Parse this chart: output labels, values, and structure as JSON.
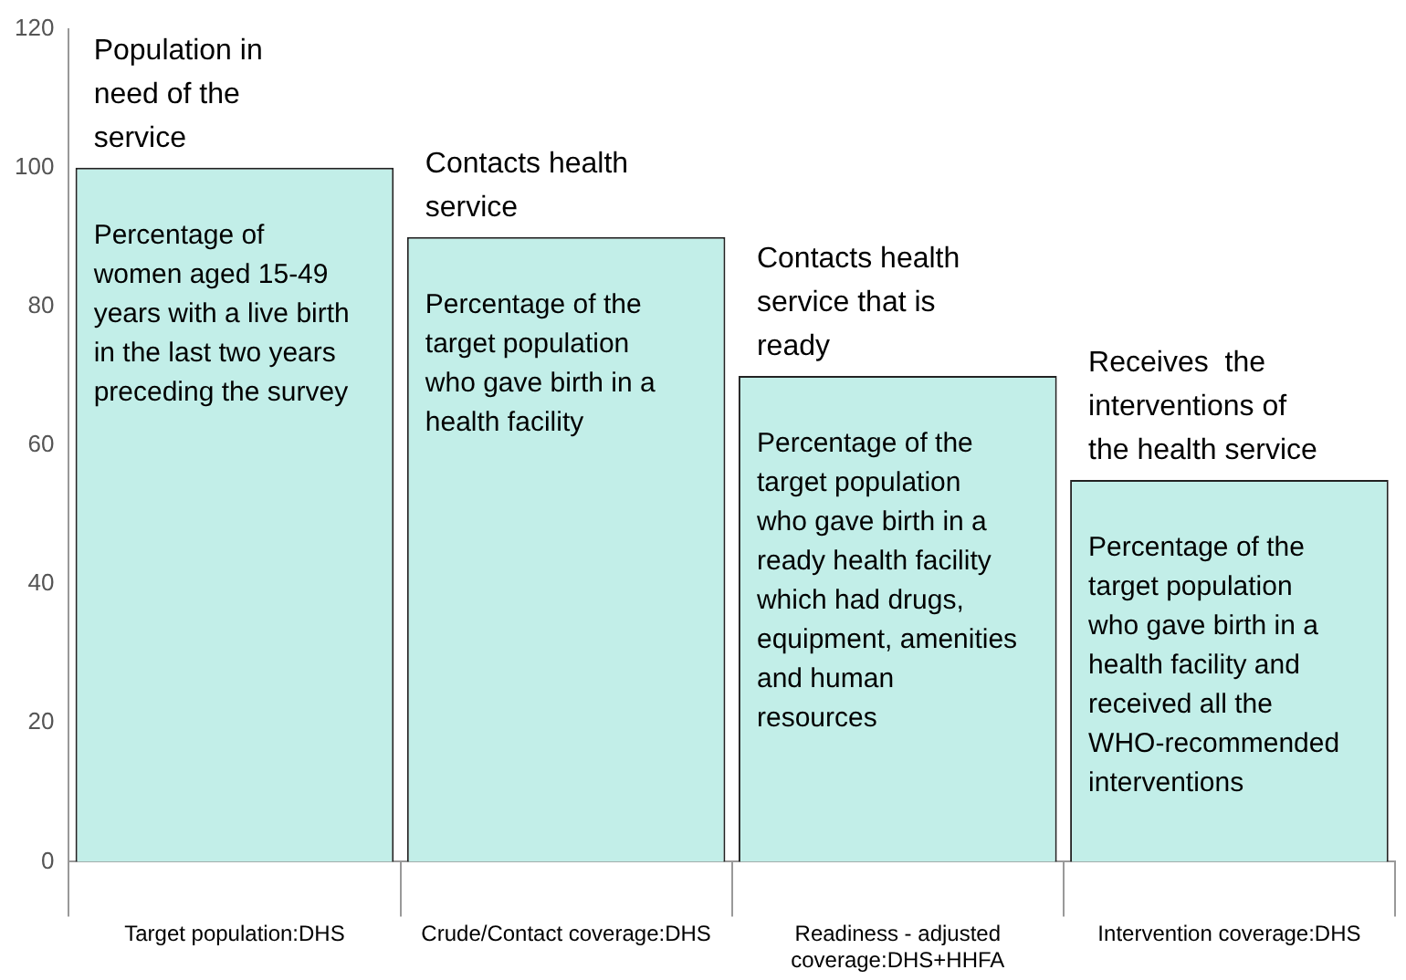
{
  "chart_data": {
    "type": "bar",
    "categories": [
      "Target population:DHS",
      "Crude/Contact coverage:DHS",
      "Readiness - adjusted coverage:DHS+HHFA",
      "Intervention coverage:DHS"
    ],
    "values": [
      100,
      90,
      70,
      55
    ],
    "color": "#c2eee8",
    "ylim": [
      0,
      120
    ],
    "yticks": [
      0,
      20,
      40,
      60,
      80,
      100,
      120
    ],
    "grid": false,
    "legend": false,
    "annotations": [
      {
        "text": "Population in need of the service",
        "x": "Target population:DHS",
        "y": 100
      },
      "Percentage of women aged 15-49 years with a live birth in the last two years preceding the survey",
      {
        "text": "Contacts health service",
        "x": "Crude/Contact coverage:DHS",
        "y": 90
      },
      "Percentage of the target population who gave birth in a health facility",
      {
        "text": "Contacts health service that is ready",
        "x": "Readiness - adjusted coverage:DHS+HHFA",
        "y": 70
      },
      "Percentage of the target population who gave birth in a ready health facility  which had drugs, equipment, amenities and human resources",
      {
        "text": "Receives  the interventions of the health service",
        "x": "Intervention coverage:DHS",
        "y": 55
      },
      "Percentage of the target population who gave birth in a health facility and received all the WHO-recommended interventions"
    ]
  }
}
